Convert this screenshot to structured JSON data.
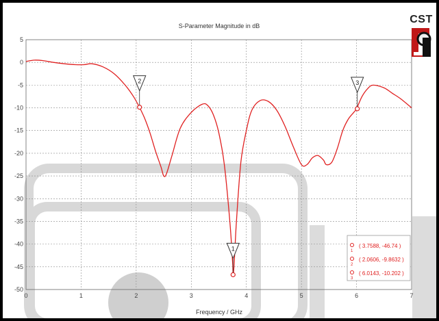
{
  "logo": {
    "text": "CST"
  },
  "colors": {
    "trace": "#e02020",
    "grid": "#888888",
    "plot_bg": "#ffffff",
    "frame": "#000000",
    "watermark": "#d4d4d4"
  },
  "chart_data": {
    "type": "line",
    "title": "S-Parameter Magnitude in dB",
    "xlabel": "Frequency / GHz",
    "ylabel": "",
    "xlim": [
      0,
      7
    ],
    "ylim": [
      -50,
      5
    ],
    "xticks": [
      0,
      1,
      2,
      3,
      4,
      5,
      6,
      7
    ],
    "yticks": [
      5,
      0,
      -5,
      -10,
      -15,
      -20,
      -25,
      -30,
      -35,
      -40,
      -45,
      -50
    ],
    "grid": true,
    "series": [
      {
        "x": [
          0,
          0.15,
          0.3,
          0.5,
          0.7,
          0.9,
          1.05,
          1.2,
          1.4,
          1.6,
          1.8,
          1.95,
          2.06,
          2.15,
          2.25,
          2.35,
          2.45,
          2.5,
          2.55,
          2.65,
          2.8,
          3.0,
          3.2,
          3.3,
          3.4,
          3.5,
          3.6,
          3.7,
          3.75,
          3.76,
          3.78,
          3.82,
          3.9,
          4.0,
          4.1,
          4.25,
          4.4,
          4.55,
          4.7,
          4.85,
          5.0,
          5.1,
          5.2,
          5.3,
          5.4,
          5.45,
          5.55,
          5.65,
          5.75,
          5.85,
          5.95,
          6.0,
          6.1,
          6.2,
          6.3,
          6.5,
          6.65,
          6.8,
          7.0
        ],
        "y": [
          0.2,
          0.5,
          0.4,
          0,
          -0.3,
          -0.5,
          -0.5,
          -0.3,
          -1.0,
          -2.5,
          -5.0,
          -7.5,
          -9.9,
          -12.2,
          -15.5,
          -19.5,
          -23.0,
          -25.0,
          -24.5,
          -20.5,
          -14.5,
          -11.0,
          -9.2,
          -9.5,
          -11.5,
          -15.5,
          -22.5,
          -35.0,
          -44.0,
          -46.7,
          -44.0,
          -35.0,
          -22.0,
          -15.0,
          -10.5,
          -8.4,
          -8.6,
          -10.5,
          -14.0,
          -18.5,
          -22.5,
          -22.5,
          -21.0,
          -20.5,
          -21.5,
          -22.5,
          -22.0,
          -19.0,
          -15.0,
          -12.5,
          -11.0,
          -10.2,
          -7.5,
          -5.8,
          -5.0,
          -5.6,
          -6.8,
          -8.0,
          -10.0
        ]
      }
    ],
    "markers": [
      {
        "id": "1",
        "x": 3.7588,
        "y": -46.74,
        "label": "( 3.7588, -46.74 )"
      },
      {
        "id": "2",
        "x": 2.0606,
        "y": -9.8632,
        "label": "( 2.0606, -9.8632 )"
      },
      {
        "id": "3",
        "x": 6.0143,
        "y": -10.202,
        "label": "( 6.0143, -10.202 )"
      }
    ]
  }
}
